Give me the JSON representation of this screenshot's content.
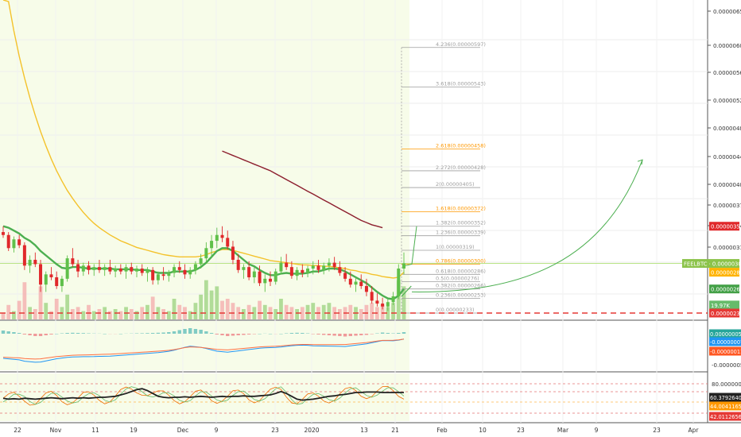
{
  "colors": {
    "background": "#ffffff",
    "pane_bg": "#f7fce9",
    "up": "#26a69a",
    "up_strong": "#5fc04a",
    "down": "#e0282b",
    "ema_fast": "#4caf50",
    "ema_mid": "#f4c22b",
    "ema_slow": "#8c1d2d",
    "fib_gray": "#9e9e9e",
    "fib_orange": "#ff9800",
    "support": "#e53935",
    "arrow": "#4caf50",
    "hline_green": "#b9e486",
    "macd_line": "#2196f3",
    "signal_line": "#ff7043",
    "stoch_main": "#212121",
    "stoch_k": "#ef6c00",
    "stoch_d": "#66bb6a"
  },
  "price_axis": {
    "ticks": [
      "0.00000650",
      "0.00000600",
      "0.00000560",
      "0.00000520",
      "0.00000480",
      "0.00000440",
      "0.00000400",
      "0.00000370",
      "0.00000340",
      "0.00000310",
      "0.00000289",
      "0.00000266",
      "0.00000233"
    ],
    "badges": [
      {
        "label": "0.00000352",
        "value": 352,
        "color": "#e0282b"
      },
      {
        "label": "FEELBTC · 0.00000301",
        "value": 301,
        "color": "#8bc34a",
        "wide": true
      },
      {
        "label": "0.00000289",
        "value": 289,
        "color": "#ffb300"
      },
      {
        "label": "0.00000266",
        "value": 266,
        "color": "#43a047"
      },
      {
        "label": "19.97K",
        "value": 244,
        "color": "#66bb6a"
      },
      {
        "label": "0.00000233",
        "value": 233,
        "color": "#e53935"
      }
    ]
  },
  "macd_axis": {
    "ticks": [
      "-0.00000050"
    ],
    "badges": [
      {
        "label": "0.00000005",
        "color": "#26a69a",
        "y": 420
      },
      {
        "label": "-0.00000007",
        "color": "#2196f3",
        "y": 430
      },
      {
        "label": "-0.00000011",
        "color": "#ff5722",
        "y": 442
      }
    ]
  },
  "stoch_axis": {
    "ticks": [
      "80.00000000"
    ],
    "badges": [
      {
        "label": "60.37926405",
        "color": "#212121",
        "y": 500
      },
      {
        "label": "44.00411652",
        "color": "#ff9800",
        "y": 511
      },
      {
        "label": "42.01126568",
        "color": "#e53935",
        "y": 524
      }
    ]
  },
  "time_axis": [
    "22",
    "Nov",
    "11",
    "19",
    "Dec",
    "9",
    "23",
    "2020",
    "13",
    "21",
    "Feb",
    "10",
    "23",
    "Mar",
    "9",
    "23",
    "Apr"
  ],
  "fib_levels": [
    {
      "label": "4.236(0.00000597)",
      "value": 597,
      "color": "#9e9e9e"
    },
    {
      "label": "3.618(0.00000543)",
      "value": 543,
      "color": "#9e9e9e"
    },
    {
      "label": "2.618(0.00000458)",
      "value": 458,
      "color": "#ff9800"
    },
    {
      "label": "2.272(0.00000428)",
      "value": 428,
      "color": "#9e9e9e"
    },
    {
      "label": "2(0.00000405)",
      "value": 405,
      "color": "#9e9e9e"
    },
    {
      "label": "1.618(0.00000372)",
      "value": 372,
      "color": "#ff9800"
    },
    {
      "label": "1.382(0.00000352)",
      "value": 352,
      "color": "#9e9e9e"
    },
    {
      "label": "1.236(0.00000339)",
      "value": 339,
      "color": "#9e9e9e"
    },
    {
      "label": "1(0.00000319)",
      "value": 319,
      "color": "#9e9e9e"
    },
    {
      "label": "0.786(0.00000300)",
      "value": 300,
      "color": "#ff9800"
    },
    {
      "label": "0.618(0.00000286)",
      "value": 286,
      "color": "#9e9e9e"
    },
    {
      "label": "0.5(0.00000276)",
      "value": 276,
      "color": "#9e9e9e"
    },
    {
      "label": "0.382(0.00000266)",
      "value": 266,
      "color": "#9e9e9e"
    },
    {
      "label": "0.236(0.00000253)",
      "value": 253,
      "color": "#9e9e9e"
    },
    {
      "label": "0(0.00000233)",
      "value": 233,
      "color": "#9e9e9e"
    }
  ],
  "chart_data": {
    "type": "candlestick",
    "title": "",
    "symbol": "FEELBTC",
    "last_price": 301,
    "support_level": 233,
    "price_unit_note": "values x 1e-8 BTC",
    "candles": [
      [
        344,
        352,
        336,
        340
      ],
      [
        340,
        344,
        318,
        322
      ],
      [
        322,
        338,
        316,
        334
      ],
      [
        334,
        340,
        322,
        326
      ],
      [
        326,
        330,
        292,
        298
      ],
      [
        298,
        312,
        288,
        306
      ],
      [
        306,
        316,
        296,
        300
      ],
      [
        300,
        306,
        262,
        272
      ],
      [
        272,
        290,
        262,
        286
      ],
      [
        286,
        296,
        278,
        282
      ],
      [
        282,
        290,
        266,
        270
      ],
      [
        270,
        284,
        262,
        280
      ],
      [
        280,
        312,
        276,
        308
      ],
      [
        308,
        322,
        296,
        300
      ],
      [
        300,
        306,
        282,
        290
      ],
      [
        290,
        302,
        284,
        298
      ],
      [
        298,
        304,
        286,
        292
      ],
      [
        292,
        300,
        284,
        296
      ],
      [
        296,
        306,
        288,
        292
      ],
      [
        292,
        300,
        284,
        296
      ],
      [
        296,
        306,
        286,
        290
      ],
      [
        290,
        298,
        282,
        294
      ],
      [
        294,
        300,
        286,
        290
      ],
      [
        290,
        300,
        280,
        296
      ],
      [
        296,
        302,
        286,
        290
      ],
      [
        290,
        298,
        282,
        294
      ],
      [
        294,
        300,
        284,
        288
      ],
      [
        288,
        296,
        276,
        292
      ],
      [
        292,
        296,
        272,
        278
      ],
      [
        278,
        290,
        272,
        286
      ],
      [
        286,
        296,
        278,
        284
      ],
      [
        284,
        292,
        276,
        288
      ],
      [
        288,
        300,
        282,
        296
      ],
      [
        296,
        304,
        288,
        292
      ],
      [
        292,
        300,
        280,
        286
      ],
      [
        286,
        296,
        280,
        292
      ],
      [
        292,
        304,
        286,
        300
      ],
      [
        300,
        314,
        294,
        308
      ],
      [
        308,
        330,
        302,
        322
      ],
      [
        322,
        340,
        310,
        332
      ],
      [
        332,
        350,
        322,
        340
      ],
      [
        340,
        352,
        330,
        336
      ],
      [
        336,
        346,
        320,
        324
      ],
      [
        324,
        332,
        300,
        306
      ],
      [
        306,
        314,
        288,
        292
      ],
      [
        292,
        300,
        280,
        296
      ],
      [
        296,
        304,
        278,
        282
      ],
      [
        282,
        296,
        274,
        290
      ],
      [
        290,
        298,
        270,
        274
      ],
      [
        274,
        286,
        262,
        280
      ],
      [
        280,
        290,
        270,
        276
      ],
      [
        276,
        294,
        272,
        290
      ],
      [
        290,
        310,
        286,
        302
      ],
      [
        302,
        314,
        292,
        296
      ],
      [
        296,
        304,
        280,
        284
      ],
      [
        284,
        296,
        278,
        292
      ],
      [
        292,
        300,
        282,
        288
      ],
      [
        288,
        298,
        282,
        294
      ],
      [
        294,
        304,
        286,
        298
      ],
      [
        298,
        306,
        288,
        292
      ],
      [
        292,
        302,
        286,
        298
      ],
      [
        298,
        308,
        290,
        302
      ],
      [
        302,
        310,
        292,
        296
      ],
      [
        296,
        304,
        284,
        288
      ],
      [
        288,
        296,
        276,
        280
      ],
      [
        280,
        290,
        268,
        272
      ],
      [
        272,
        282,
        262,
        276
      ],
      [
        276,
        286,
        266,
        270
      ],
      [
        270,
        280,
        256,
        262
      ],
      [
        262,
        270,
        246,
        250
      ],
      [
        250,
        260,
        242,
        246
      ],
      [
        246,
        254,
        238,
        242
      ],
      [
        242,
        252,
        236,
        248
      ],
      [
        248,
        262,
        244,
        256
      ],
      [
        256,
        300,
        252,
        294
      ],
      [
        294,
        316,
        286,
        301
      ]
    ],
    "volume": [
      0.15,
      0.35,
      0.2,
      0.45,
      0.9,
      0.3,
      0.25,
      0.8,
      0.4,
      0.2,
      0.5,
      0.3,
      0.6,
      0.25,
      0.3,
      0.2,
      0.35,
      0.2,
      0.25,
      0.3,
      0.2,
      0.25,
      0.2,
      0.3,
      0.25,
      0.2,
      0.3,
      0.35,
      0.55,
      0.3,
      0.25,
      0.2,
      0.5,
      0.35,
      0.3,
      0.2,
      0.4,
      0.6,
      0.95,
      0.7,
      0.8,
      0.45,
      0.5,
      0.4,
      0.3,
      0.25,
      0.35,
      0.3,
      0.45,
      0.35,
      0.3,
      0.25,
      0.5,
      0.35,
      0.3,
      0.25,
      0.3,
      0.35,
      0.4,
      0.3,
      0.35,
      0.4,
      0.3,
      0.25,
      0.3,
      0.35,
      0.3,
      0.25,
      0.35,
      0.4,
      0.3,
      0.35,
      0.3,
      0.4,
      0.95,
      0.8
    ],
    "ema_fast": [
      352,
      350,
      346,
      342,
      336,
      332,
      326,
      318,
      312,
      306,
      300,
      295,
      294,
      296,
      296,
      295,
      294,
      294,
      294,
      294,
      294,
      293,
      293,
      293,
      293,
      292,
      292,
      292,
      290,
      288,
      288,
      288,
      290,
      290,
      290,
      290,
      292,
      296,
      302,
      310,
      318,
      322,
      322,
      318,
      312,
      306,
      300,
      297,
      292,
      288,
      285,
      285,
      287,
      288,
      287,
      287,
      287,
      288,
      290,
      290,
      292,
      294,
      294,
      293,
      290,
      286,
      282,
      278,
      274,
      268,
      262,
      257,
      253,
      252,
      257,
      266
    ],
    "ema_mid": [
      700,
      660,
      620,
      585,
      555,
      528,
      504,
      482,
      462,
      444,
      428,
      414,
      401,
      390,
      380,
      371,
      363,
      356,
      350,
      345,
      340,
      336,
      332,
      329,
      326,
      323,
      321,
      319,
      317,
      315,
      313,
      312,
      311,
      310,
      310,
      310,
      310,
      311,
      313,
      316,
      318,
      320,
      320,
      319,
      317,
      315,
      313,
      311,
      309,
      307,
      305,
      304,
      303,
      302,
      301,
      300,
      299,
      299,
      298,
      298,
      297,
      297,
      296,
      295,
      294,
      292,
      291,
      289,
      288,
      286,
      285,
      283,
      282,
      281,
      282,
      289
    ],
    "ema_slow": [
      null,
      null,
      null,
      null,
      null,
      null,
      null,
      null,
      null,
      null,
      null,
      null,
      null,
      null,
      null,
      null,
      null,
      null,
      null,
      null,
      null,
      null,
      null,
      null,
      null,
      null,
      null,
      null,
      null,
      null,
      null,
      null,
      null,
      null,
      null,
      null,
      null,
      null,
      null,
      null,
      null,
      455,
      452,
      449,
      446,
      443,
      440,
      437,
      434,
      431,
      428,
      424,
      420,
      416,
      412,
      408,
      404,
      400,
      396,
      392,
      388,
      384,
      380,
      376,
      372,
      368,
      364,
      360,
      357,
      354,
      352,
      350,
      null,
      null,
      null,
      null
    ],
    "projection": {
      "from": [
        75,
        262
      ],
      "to": [
        116,
        443
      ]
    },
    "macd": {
      "hist": [
        0.4,
        0.3,
        0.2,
        0.1,
        -0.1,
        -0.2,
        -0.3,
        -0.3,
        -0.2,
        -0.1,
        0.0,
        0.05,
        0.1,
        0.12,
        0.1,
        0.08,
        0.05,
        0.03,
        0.02,
        0.0,
        -0.02,
        -0.02,
        0.0,
        0.02,
        0.03,
        0.05,
        0.06,
        0.08,
        0.1,
        0.12,
        0.15,
        0.2,
        0.3,
        0.45,
        0.6,
        0.7,
        0.6,
        0.5,
        0.3,
        0.1,
        -0.1,
        -0.2,
        -0.3,
        -0.25,
        -0.2,
        -0.15,
        -0.1,
        -0.05,
        0.0,
        0.02,
        0.0,
        -0.02,
        0.0,
        0.05,
        0.1,
        0.12,
        0.1,
        0.05,
        -0.05,
        -0.1,
        -0.15,
        -0.2,
        -0.25,
        -0.3,
        -0.35,
        -0.3,
        -0.25,
        -0.2,
        -0.15,
        -0.05,
        0.05,
        0.15,
        0.1,
        0.05,
        0.1,
        0.2
      ]
    },
    "stoch": {
      "main": [
        48,
        46,
        47,
        46,
        48,
        47,
        46,
        47,
        48,
        49,
        48,
        47,
        48,
        49,
        48,
        49,
        48,
        49,
        50,
        50,
        51,
        52,
        55,
        58,
        62,
        66,
        68,
        64,
        58,
        52,
        50,
        49,
        50,
        50,
        51,
        50,
        51,
        52,
        51,
        50,
        51,
        52,
        51,
        52,
        52,
        53,
        52,
        52,
        53,
        54,
        55,
        58,
        62,
        58,
        52,
        46,
        44,
        45,
        46,
        48,
        50,
        52,
        53,
        55,
        56,
        58,
        60,
        60,
        61,
        61,
        61,
        60,
        60,
        60,
        60,
        60
      ]
    }
  }
}
